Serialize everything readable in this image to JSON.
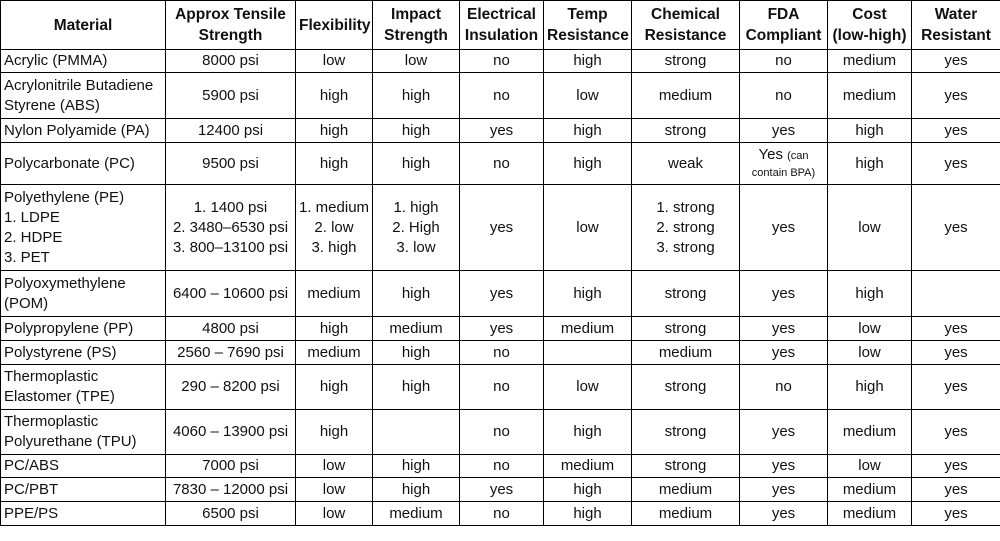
{
  "headers": [
    [
      "Material"
    ],
    [
      "Approx Tensile",
      "Strength"
    ],
    [
      "Flexibility"
    ],
    [
      "Impact",
      "Strength"
    ],
    [
      "Electrical",
      "Insulation"
    ],
    [
      "Temp",
      "Resistance"
    ],
    [
      "Chemical",
      "Resistance"
    ],
    [
      "FDA",
      "Compliant"
    ],
    [
      "Cost",
      "(low-high)"
    ],
    [
      "Water",
      "Resistant"
    ]
  ],
  "rows": [
    {
      "material": [
        "Acrylic (PMMA)"
      ],
      "tensile": [
        "8000 psi"
      ],
      "flex": [
        "low"
      ],
      "impact": [
        "low"
      ],
      "elec": "no",
      "temp": "high",
      "chem": [
        "strong"
      ],
      "fda": "no",
      "fda_note": "",
      "cost": "medium",
      "water": "yes"
    },
    {
      "material": [
        "Acrylonitrile Butadiene",
        "Styrene (ABS)"
      ],
      "tensile": [
        "5900 psi"
      ],
      "flex": [
        "high"
      ],
      "impact": [
        "high"
      ],
      "elec": "no",
      "temp": "low",
      "chem": [
        "medium"
      ],
      "fda": "no",
      "fda_note": "",
      "cost": "medium",
      "water": "yes"
    },
    {
      "material": [
        "Nylon Polyamide (PA)"
      ],
      "tensile": [
        "12400 psi"
      ],
      "flex": [
        "high"
      ],
      "impact": [
        "high"
      ],
      "elec": "yes",
      "temp": "high",
      "chem": [
        "strong"
      ],
      "fda": "yes",
      "fda_note": "",
      "cost": "high",
      "water": "yes"
    },
    {
      "material": [
        "Polycarbonate (PC)"
      ],
      "tensile": [
        "9500 psi"
      ],
      "flex": [
        "high"
      ],
      "impact": [
        "high"
      ],
      "elec": "no",
      "temp": "high",
      "chem": [
        "weak"
      ],
      "fda": "Yes",
      "fda_note": "(can contain BPA)",
      "cost": "high",
      "water": "yes"
    },
    {
      "material": [
        "Polyethylene (PE)",
        "1. LDPE",
        "2. HDPE",
        "3. PET"
      ],
      "tensile": [
        "1. 1400 psi",
        "2. 3480–6530 psi",
        "3. 800–13100 psi"
      ],
      "flex": [
        "1. medium",
        "2. low",
        "3. high"
      ],
      "impact": [
        "1. high",
        "2. High",
        "3. low"
      ],
      "elec": "yes",
      "temp": "low",
      "chem": [
        "1. strong",
        "2. strong",
        "3. strong"
      ],
      "fda": "yes",
      "fda_note": "",
      "cost": "low",
      "water": "yes"
    },
    {
      "material": [
        "Polyoxymethylene",
        "(POM)"
      ],
      "tensile": [
        "6400 – 10600 psi"
      ],
      "flex": [
        "medium"
      ],
      "impact": [
        "high"
      ],
      "elec": "yes",
      "temp": "high",
      "chem": [
        "strong"
      ],
      "fda": "yes",
      "fda_note": "",
      "cost": "high",
      "water": ""
    },
    {
      "material": [
        "Polypropylene (PP)"
      ],
      "tensile": [
        "4800 psi"
      ],
      "flex": [
        "high"
      ],
      "impact": [
        "medium"
      ],
      "elec": "yes",
      "temp": "medium",
      "chem": [
        "strong"
      ],
      "fda": "yes",
      "fda_note": "",
      "cost": "low",
      "water": "yes"
    },
    {
      "material": [
        "Polystyrene (PS)"
      ],
      "tensile": [
        "2560 – 7690 psi"
      ],
      "flex": [
        "medium"
      ],
      "impact": [
        "high"
      ],
      "elec": "no",
      "temp": "",
      "chem": [
        "medium"
      ],
      "fda": "yes",
      "fda_note": "",
      "cost": "low",
      "water": "yes"
    },
    {
      "material": [
        "Thermoplastic",
        "Elastomer (TPE)"
      ],
      "tensile": [
        "290 – 8200 psi"
      ],
      "flex": [
        "high"
      ],
      "impact": [
        "high"
      ],
      "elec": "no",
      "temp": "low",
      "chem": [
        "strong"
      ],
      "fda": "no",
      "fda_note": "",
      "cost": "high",
      "water": "yes"
    },
    {
      "material": [
        "Thermoplastic",
        "Polyurethane (TPU)"
      ],
      "tensile": [
        "4060 – 13900 psi"
      ],
      "flex": [
        "high"
      ],
      "impact": [
        ""
      ],
      "elec": "no",
      "temp": "high",
      "chem": [
        "strong"
      ],
      "fda": "yes",
      "fda_note": "",
      "cost": "medium",
      "water": "yes"
    },
    {
      "material": [
        "PC/ABS"
      ],
      "tensile": [
        "7000 psi"
      ],
      "flex": [
        "low"
      ],
      "impact": [
        "high"
      ],
      "elec": "no",
      "temp": "medium",
      "chem": [
        "strong"
      ],
      "fda": "yes",
      "fda_note": "",
      "cost": "low",
      "water": "yes"
    },
    {
      "material": [
        "PC/PBT"
      ],
      "tensile": [
        "7830 – 12000 psi"
      ],
      "flex": [
        "low"
      ],
      "impact": [
        "high"
      ],
      "elec": "yes",
      "temp": "high",
      "chem": [
        "medium"
      ],
      "fda": "yes",
      "fda_note": "",
      "cost": "medium",
      "water": "yes"
    },
    {
      "material": [
        "PPE/PS"
      ],
      "tensile": [
        "6500 psi"
      ],
      "flex": [
        "low"
      ],
      "impact": [
        "medium"
      ],
      "elec": "no",
      "temp": "high",
      "chem": [
        "medium"
      ],
      "fda": "yes",
      "fda_note": "",
      "cost": "medium",
      "water": "yes"
    }
  ]
}
